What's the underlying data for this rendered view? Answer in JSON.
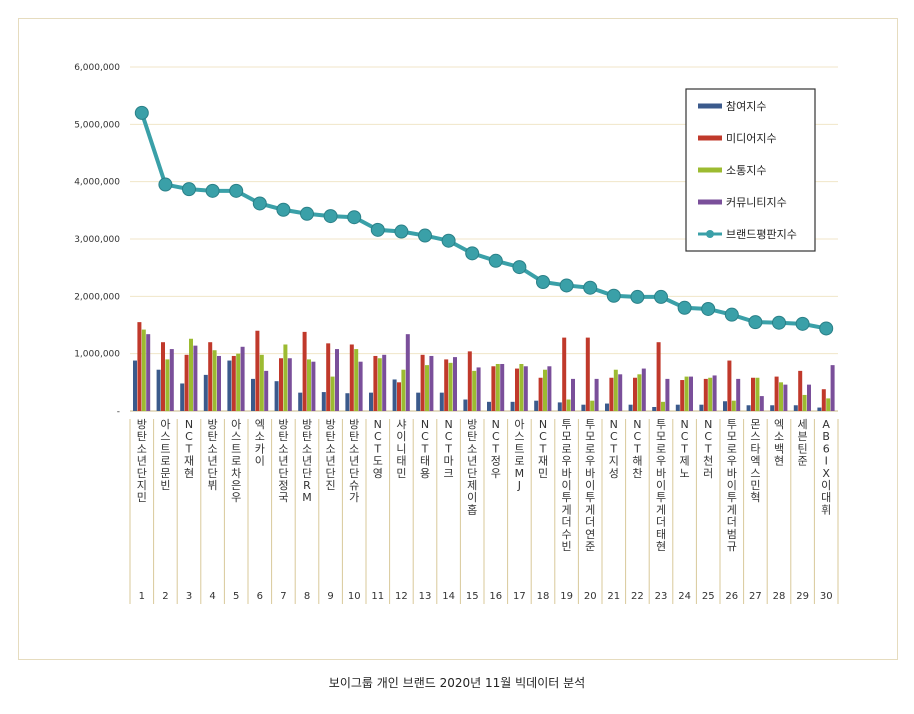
{
  "caption": "보이그룹 개인 브랜드 2020년 11월 빅데이터 분석",
  "chart_data": {
    "type": "bar",
    "ylim": [
      0,
      6000000
    ],
    "y_ticks": [
      "-",
      "1,000,000",
      "2,000,000",
      "3,000,000",
      "4,000,000",
      "5,000,000",
      "6,000,000"
    ],
    "grid": true,
    "legend_position": "top-right",
    "ranks": [
      "1",
      "2",
      "3",
      "4",
      "5",
      "6",
      "7",
      "8",
      "9",
      "10",
      "11",
      "12",
      "13",
      "14",
      "15",
      "16",
      "17",
      "18",
      "19",
      "20",
      "21",
      "22",
      "23",
      "24",
      "25",
      "26",
      "27",
      "28",
      "29",
      "30"
    ],
    "categories": [
      "방탄소년단 지민",
      "아스트로 문빈",
      "NCT 재현",
      "방탄소년단 뷔",
      "아스트로 차은우",
      "엑소 카이",
      "방탄소년단 정국",
      "방탄소년단 RM",
      "방탄소년단 진",
      "방탄소년단 슈가",
      "NCT 도영",
      "샤이니 태민",
      "NCT 태용",
      "NCT 마크",
      "방탄소년단 제이홉",
      "NCT 정우",
      "아스트로 MJ",
      "NCT 재민",
      "투모로우바이투게더 수빈",
      "투모로우바이투게더 연준",
      "NCT 지성",
      "NCT 해찬",
      "투모로우바이투게더 태현",
      "NCT 제노",
      "NCT 천러",
      "투모로우바이투게더 범규",
      "몬스타엑스 민혁",
      "엑소 백현",
      "세븐틴 준",
      "AB6IX 이대휘"
    ],
    "series": [
      {
        "name": "참여지수",
        "color": "#3b5a8c",
        "values": [
          880000,
          720000,
          480000,
          630000,
          880000,
          560000,
          520000,
          320000,
          330000,
          310000,
          320000,
          550000,
          320000,
          320000,
          200000,
          160000,
          160000,
          180000,
          150000,
          110000,
          130000,
          110000,
          70000,
          110000,
          110000,
          170000,
          100000,
          100000,
          100000,
          60000
        ]
      },
      {
        "name": "미디어지수",
        "color": "#c0392b",
        "values": [
          1550000,
          1200000,
          980000,
          1200000,
          960000,
          1400000,
          920000,
          1380000,
          1180000,
          1160000,
          960000,
          500000,
          980000,
          900000,
          1040000,
          780000,
          740000,
          580000,
          1280000,
          1280000,
          580000,
          580000,
          1200000,
          540000,
          560000,
          880000,
          580000,
          600000,
          700000,
          380000
        ]
      },
      {
        "name": "소통지수",
        "color": "#9cbb31",
        "values": [
          1420000,
          900000,
          1260000,
          1060000,
          1000000,
          980000,
          1160000,
          900000,
          600000,
          1080000,
          920000,
          720000,
          800000,
          840000,
          700000,
          820000,
          820000,
          720000,
          200000,
          180000,
          720000,
          640000,
          160000,
          600000,
          580000,
          180000,
          580000,
          500000,
          280000,
          220000
        ]
      },
      {
        "name": "커뮤니티지수",
        "color": "#7a4f9a",
        "values": [
          1340000,
          1080000,
          1140000,
          960000,
          1120000,
          700000,
          920000,
          860000,
          1080000,
          860000,
          980000,
          1340000,
          960000,
          940000,
          760000,
          820000,
          780000,
          780000,
          560000,
          560000,
          640000,
          740000,
          560000,
          600000,
          620000,
          560000,
          260000,
          460000,
          460000,
          800000
        ]
      },
      {
        "name": "브랜드평판지수",
        "color": "#3aa0a8",
        "type": "line",
        "values": [
          5200000,
          3950000,
          3870000,
          3840000,
          3840000,
          3620000,
          3510000,
          3440000,
          3400000,
          3380000,
          3160000,
          3130000,
          3060000,
          2970000,
          2750000,
          2620000,
          2510000,
          2250000,
          2190000,
          2150000,
          2010000,
          1990000,
          1990000,
          1800000,
          1780000,
          1680000,
          1550000,
          1540000,
          1520000,
          1440000
        ]
      }
    ]
  }
}
